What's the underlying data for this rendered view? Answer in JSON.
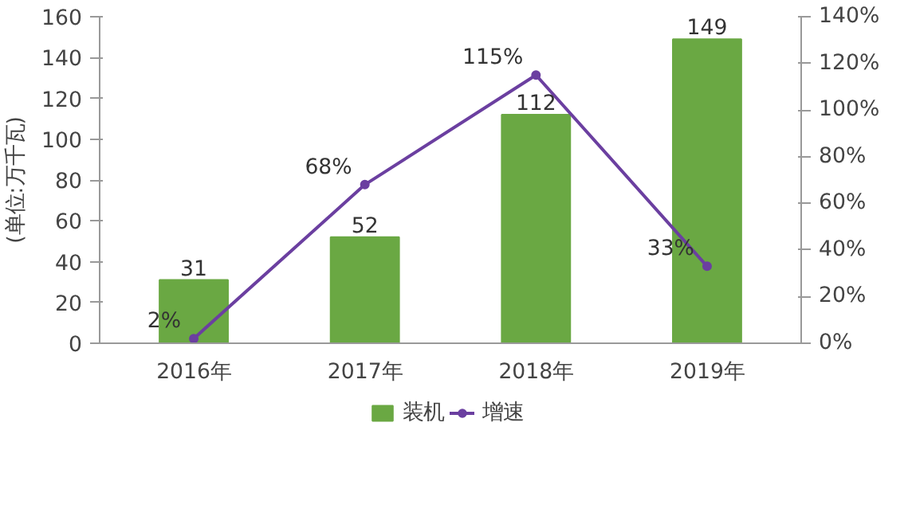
{
  "chart_data": {
    "type": "bar",
    "categories": [
      "2016年",
      "2017年",
      "2018年",
      "2019年"
    ],
    "ylabel": "(单位:万千瓦)",
    "ylim": [
      0,
      160
    ],
    "yticks": [
      0,
      20,
      40,
      60,
      80,
      100,
      120,
      140,
      160
    ],
    "y2lim": [
      0,
      140
    ],
    "y2ticks": [
      {
        "value": 0,
        "label": "0%"
      },
      {
        "value": 20,
        "label": "20%"
      },
      {
        "value": 40,
        "label": "40%"
      },
      {
        "value": 60,
        "label": "60%"
      },
      {
        "value": 80,
        "label": "80%"
      },
      {
        "value": 100,
        "label": "100%"
      },
      {
        "value": 120,
        "label": "120%"
      },
      {
        "value": 140,
        "label": "140%"
      }
    ],
    "series": [
      {
        "name": "装机",
        "color": "#6aa843",
        "values": [
          31,
          52,
          112,
          149
        ],
        "value_labels": [
          "31",
          "52",
          "112",
          "149"
        ]
      },
      {
        "name": "增速",
        "type": "line",
        "axis": "y2",
        "color": "#6b3fa0",
        "marker": "circle",
        "values": [
          2,
          68,
          115,
          33
        ],
        "value_labels": [
          "2%",
          "68%",
          "115%",
          "33%"
        ]
      }
    ],
    "grid": false,
    "legend": "bottom"
  }
}
